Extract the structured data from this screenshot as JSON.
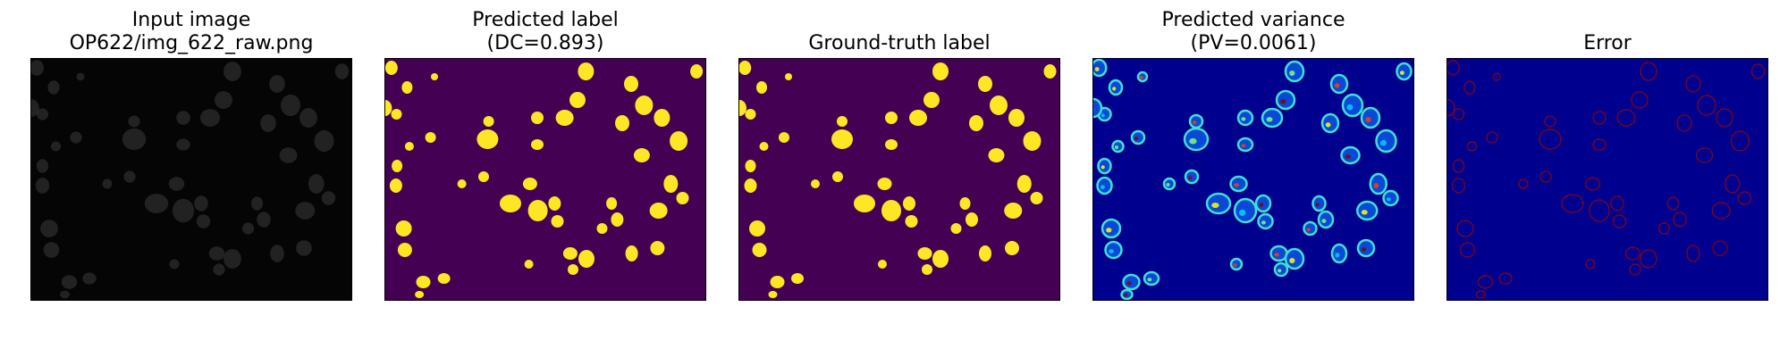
{
  "panels": [
    {
      "id": "input",
      "title_line1": "Input image",
      "title_line2": "OP622/img_622_raw.png",
      "background": "#050505",
      "blob_fill": "#3a3a3a",
      "blob_stroke": "#4a4a4a"
    },
    {
      "id": "predicted-label",
      "title_line1": "Predicted label",
      "title_line2": "(DC=0.893)",
      "background": "#440154",
      "blob_fill": "#fde725",
      "blob_stroke": "#fde725"
    },
    {
      "id": "ground-truth",
      "title_line1": "",
      "title_line2": "Ground-truth label",
      "background": "#440154",
      "blob_fill": "#fde725",
      "blob_stroke": "#fde725"
    },
    {
      "id": "predicted-variance",
      "title_line1": "Predicted variance",
      "title_line2": "(PV=0.0061)",
      "background": "#00008f",
      "blob_fill": "#0a49d8",
      "blob_stroke": "#40e0d0",
      "accent_colors": [
        "#7fff7f",
        "#ff3b00",
        "#ffff00",
        "#00d0ff",
        "#8b0000"
      ]
    },
    {
      "id": "error",
      "title_line1": "",
      "title_line2": "Error",
      "background": "#00008f",
      "blob_fill": "#00008f",
      "blob_stroke": "#a00000"
    }
  ]
}
